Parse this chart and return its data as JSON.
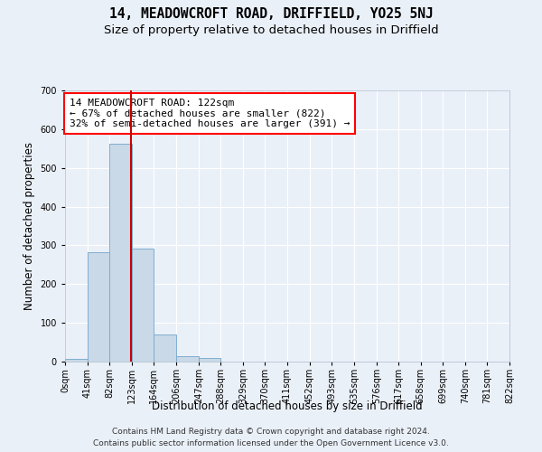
{
  "title": "14, MEADOWCROFT ROAD, DRIFFIELD, YO25 5NJ",
  "subtitle": "Size of property relative to detached houses in Driffield",
  "xlabel": "Distribution of detached houses by size in Driffield",
  "ylabel": "Number of detached properties",
  "bin_edges": [
    0,
    41,
    82,
    123,
    164,
    206,
    247,
    288,
    329,
    370,
    411,
    452,
    493,
    535,
    576,
    617,
    658,
    699,
    740,
    781,
    822
  ],
  "bar_heights": [
    8,
    283,
    563,
    292,
    70,
    14,
    9,
    0,
    0,
    0,
    0,
    0,
    0,
    0,
    0,
    0,
    0,
    0,
    0,
    0
  ],
  "bar_color": "#c9d9e8",
  "bar_edge_color": "#7faecf",
  "property_line_x": 122,
  "annotation_text": "14 MEADOWCROFT ROAD: 122sqm\n← 67% of detached houses are smaller (822)\n32% of semi-detached houses are larger (391) →",
  "annotation_box_color": "white",
  "annotation_box_edge_color": "red",
  "ylim": [
    0,
    700
  ],
  "yticks": [
    0,
    100,
    200,
    300,
    400,
    500,
    600,
    700
  ],
  "tick_labels": [
    "0sqm",
    "41sqm",
    "82sqm",
    "123sqm",
    "164sqm",
    "206sqm",
    "247sqm",
    "288sqm",
    "329sqm",
    "370sqm",
    "411sqm",
    "452sqm",
    "493sqm",
    "535sqm",
    "576sqm",
    "617sqm",
    "658sqm",
    "699sqm",
    "740sqm",
    "781sqm",
    "822sqm"
  ],
  "footer_line1": "Contains HM Land Registry data © Crown copyright and database right 2024.",
  "footer_line2": "Contains public sector information licensed under the Open Government Licence v3.0.",
  "bg_color": "#eaf0f8",
  "plot_bg_color": "#eaf0f8",
  "grid_color": "white",
  "red_line_color": "#cc0000",
  "title_fontsize": 10.5,
  "subtitle_fontsize": 9.5,
  "axis_label_fontsize": 8.5,
  "tick_fontsize": 7,
  "footer_fontsize": 6.5,
  "annotation_fontsize": 8
}
